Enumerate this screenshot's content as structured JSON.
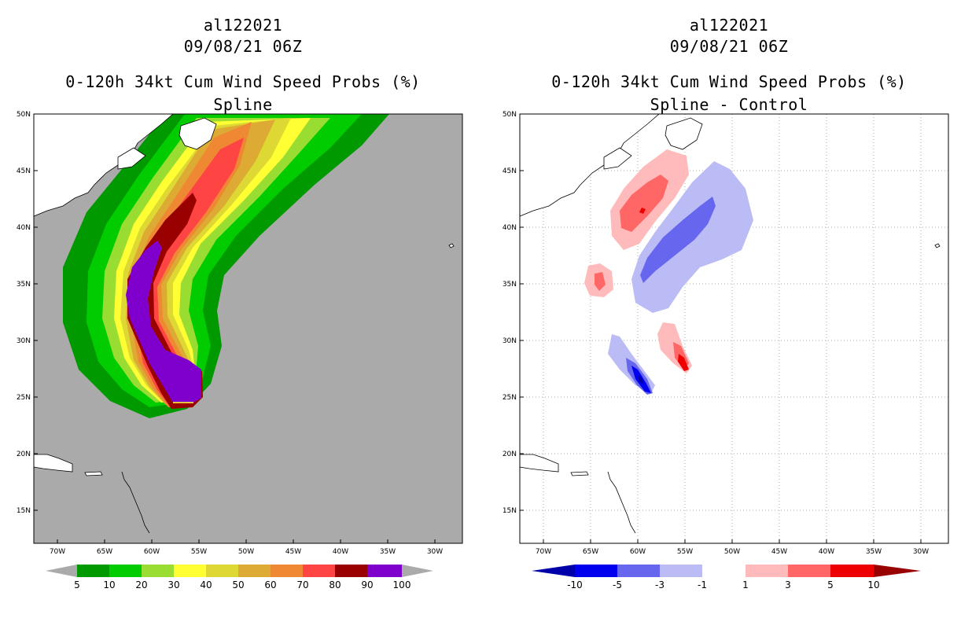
{
  "storm_id": "al122021",
  "datetime": "09/08/21 06Z",
  "product": "0-120h 34kt Cum Wind Speed Probs (%)",
  "colors": {
    "ocean": "#aaaaaa",
    "land": "#ffffff",
    "coast": "#000000",
    "grid": "#999999"
  },
  "left": {
    "subtitle": "Spline",
    "lon_ticks": [
      "70W",
      "65W",
      "60W",
      "55W",
      "50W",
      "45W",
      "40W",
      "35W",
      "30W"
    ],
    "lat_ticks": [
      "50N",
      "45N",
      "40N",
      "35N",
      "30N",
      "25N",
      "20N",
      "15N"
    ],
    "colorbar": {
      "labels": [
        "5",
        "10",
        "20",
        "30",
        "40",
        "50",
        "60",
        "70",
        "80",
        "90",
        "100"
      ],
      "colors": [
        "#009900",
        "#00cc00",
        "#99dd33",
        "#ffff33",
        "#ddd833",
        "#ddaa33",
        "#ee8833",
        "#ff4444",
        "#990000",
        "#7f00cc"
      ]
    }
  },
  "right": {
    "subtitle": "Spline - Control",
    "lon_ticks": [
      "70W",
      "65W",
      "60W",
      "55W",
      "50W",
      "45W",
      "40W",
      "35W",
      "30W"
    ],
    "lat_ticks": [
      "50N",
      "45N",
      "40N",
      "35N",
      "30N",
      "25N",
      "20N",
      "15N"
    ],
    "colorbar": {
      "labels": [
        "-10",
        "-5",
        "-3",
        "-1",
        "1",
        "3",
        "5",
        "10"
      ],
      "colors": [
        "#0000aa",
        "#0000ee",
        "#6666ee",
        "#bbbbf5",
        "#ffffff",
        "#ffbbbb",
        "#ff6666",
        "#ee0000",
        "#990000"
      ]
    }
  }
}
